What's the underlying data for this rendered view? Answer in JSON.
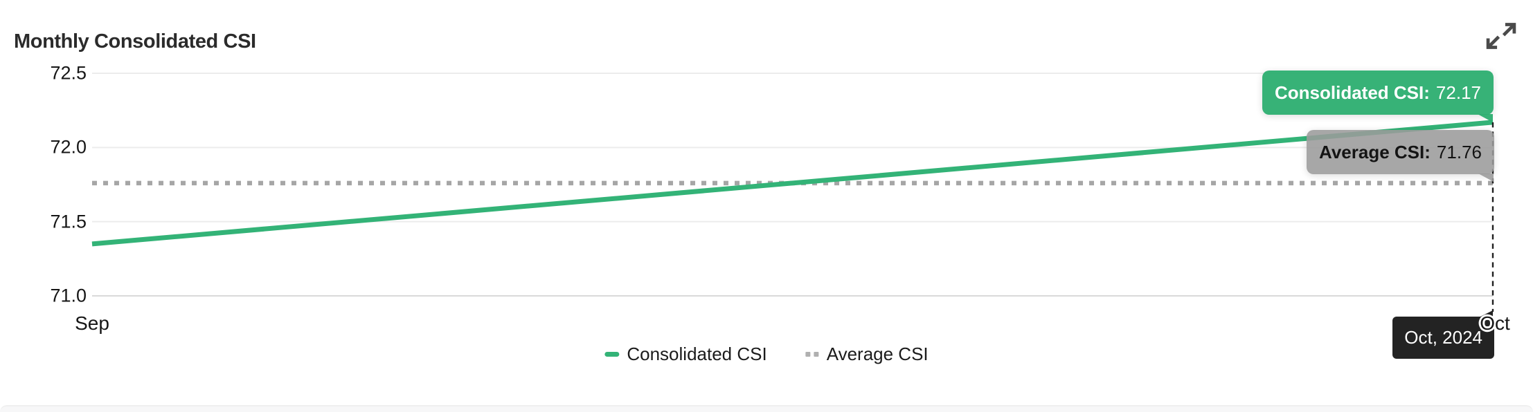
{
  "header": {
    "title": "Monthly Consolidated CSI"
  },
  "chart_data": {
    "type": "line",
    "title": "Monthly Consolidated CSI",
    "categories": [
      "Sep",
      "Oct"
    ],
    "series": [
      {
        "name": "Consolidated CSI",
        "values": [
          71.35,
          72.17
        ],
        "color": "#33b377",
        "line_style": "solid"
      },
      {
        "name": "Average CSI",
        "values": [
          71.76,
          71.76
        ],
        "color": "#a6a6a6",
        "line_style": "dotted"
      }
    ],
    "ylim": [
      71.0,
      72.5
    ],
    "ytick_labels": [
      "72.5",
      "72.0",
      "71.5",
      "71.0"
    ],
    "xlabel": "",
    "ylabel": "",
    "grid": true,
    "legend_position": "bottom"
  },
  "tooltips": {
    "consolidated": {
      "label": "Consolidated CSI",
      "separator": ":",
      "value": "72.17",
      "bg": "rgba(44,174,112,0.95)"
    },
    "average": {
      "label": "Average CSI",
      "separator": ":",
      "value": "71.76",
      "bg": "rgba(155,155,155,0.88)"
    },
    "axis": {
      "label": "Oct, 2024",
      "bg": "rgba(26,26,26,0.96)"
    }
  },
  "legend": {
    "items": [
      {
        "label": "Consolidated CSI",
        "color": "#33b377",
        "marker": "solid-line"
      },
      {
        "label": "Average CSI",
        "color": "#b0b0b0",
        "marker": "dotted-line"
      }
    ]
  }
}
